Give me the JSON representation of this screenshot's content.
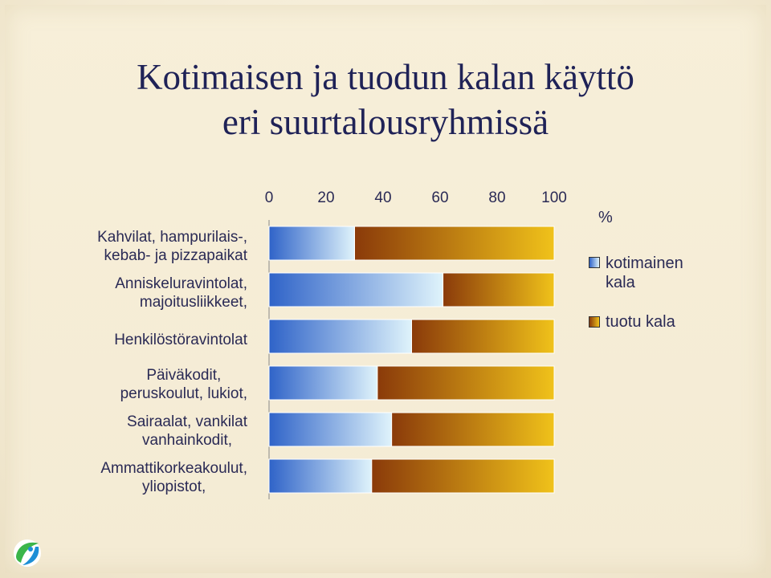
{
  "title_line1": "Kotimaisen ja tuodun kalan käyttö",
  "title_line2": "eri suurtalousryhmissä",
  "labels": [
    [
      "Kahvilat, hampurilais-,",
      "kebab- ja pizzapaikat"
    ],
    [
      "Anniskeluravintolat,",
      "majoitusliikkeet,"
    ],
    [
      "Henkilöstöravintolat"
    ],
    [
      "Päiväkodit,",
      "peruskoulut, lukiot,"
    ],
    [
      "Sairaalat, vankilat",
      "vanhainkodit,"
    ],
    [
      "Ammattikorkeakoulut,",
      "yliopistot,"
    ]
  ],
  "legend": {
    "unit": "%",
    "domestic": [
      "kotimainen",
      "kala"
    ],
    "imported": "tuotu kala"
  },
  "colors": {
    "domestic_dark": "#2f63c8",
    "domestic_light": "#dff3fb",
    "imported_dark": "#8a3a0a",
    "imported_light": "#f0c21a",
    "title": "#1f2257"
  },
  "logo_icon": "fish-leaf-logo-icon",
  "chart_data": {
    "type": "bar",
    "orientation": "horizontal",
    "stacked": true,
    "title": "Kotimaisen ja tuodun kalan käyttö eri suurtalousryhmissä",
    "categories": [
      "Kahvilat, hampurilais-, kebab- ja pizzapaikat",
      "Anniskeluravintolat, majoitusliikkeet,",
      "Henkilöstöravintolat",
      "Päiväkodit, peruskoulut, lukiot,",
      "Sairaalat, vankilat vanhainkodit,",
      "Ammattikorkeakoulut, yliopistot,"
    ],
    "series": [
      {
        "name": "kotimainen kala",
        "values": [
          30,
          61,
          50,
          38,
          43,
          36
        ]
      },
      {
        "name": "tuotu kala",
        "values": [
          70,
          39,
          50,
          62,
          57,
          64
        ]
      }
    ],
    "xticks": [
      0,
      20,
      40,
      60,
      80,
      100
    ],
    "xlim": [
      0,
      100
    ],
    "xaxis_position": "top",
    "unit_label": "%",
    "legend_position": "right"
  }
}
